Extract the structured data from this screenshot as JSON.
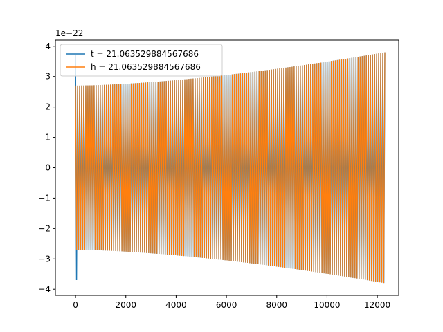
{
  "chart_data": {
    "type": "line",
    "title": "",
    "xlabel": "",
    "ylabel": "",
    "y_offset_text": "1e−22",
    "xlim": [
      -800,
      12850
    ],
    "ylim": [
      -4.2,
      4.2
    ],
    "x_ticks": [
      0,
      2000,
      4000,
      6000,
      8000,
      10000,
      12000
    ],
    "x_tick_labels": [
      "0",
      "2000",
      "4000",
      "6000",
      "8000",
      "10000",
      "12000"
    ],
    "y_ticks": [
      -4,
      -3,
      -2,
      -1,
      0,
      1,
      2,
      3,
      4
    ],
    "y_tick_labels": [
      "−4",
      "−3",
      "−2",
      "−1",
      "0",
      "1",
      "2",
      "3",
      "4"
    ],
    "grid": false,
    "legend_position": "upper-left",
    "series": [
      {
        "name": "t = 21.063529884567686",
        "color": "#1f77b4",
        "description": "oscillating waveform, amplitude grows from about 2.7 to 3.8 (x1e-22) over x = 0 to 12300; initial spike to about 3.7 / -3.7 near x = 0",
        "x_start": 0,
        "x_end": 12300,
        "amplitude_start": 2.7,
        "amplitude_end": 3.8,
        "initial_peak": 3.7,
        "initial_trough": -3.7
      },
      {
        "name": "h = 21.063529884567686",
        "color": "#ff7f0e",
        "description": "oscillating waveform, amplitude grows from about 2.7 to 3.8 (x1e-22) over x = 0 to 12300",
        "x_start": 0,
        "x_end": 12300,
        "amplitude_start": 2.7,
        "amplitude_end": 3.8
      }
    ]
  }
}
